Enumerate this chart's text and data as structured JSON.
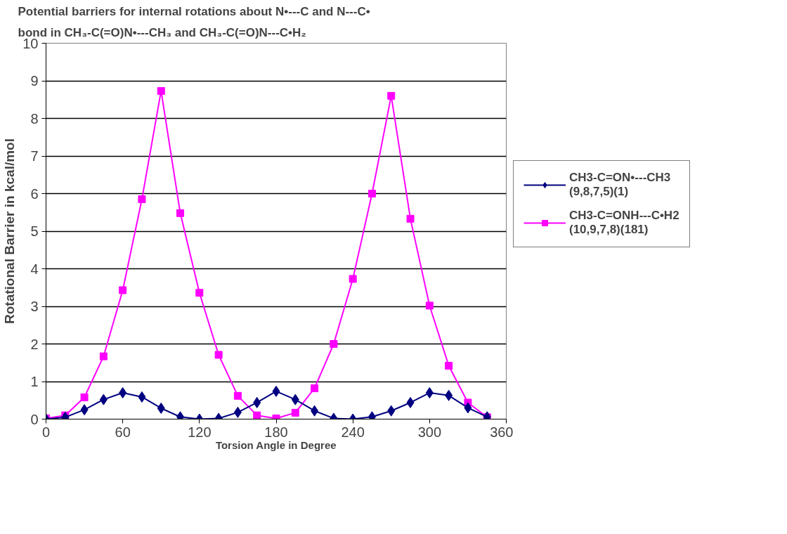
{
  "chart_data": {
    "type": "line",
    "title": "Potential barriers for internal rotations about N•---C and N---C•\nbond in CH₃-C(=O)N•---CH₃ and CH₃-C(=O)N---C•H₂",
    "xlabel": "Torsion Angle in Degree",
    "ylabel": "Rotational Barrier in kcal/mol",
    "x": [
      0,
      15,
      30,
      45,
      60,
      75,
      90,
      105,
      120,
      135,
      150,
      165,
      180,
      195,
      210,
      225,
      240,
      255,
      270,
      285,
      300,
      315,
      330,
      345
    ],
    "series": [
      {
        "name": "CH3-C=ON•---CH3\n(9,8,7,5)(1)",
        "color": "#000080",
        "marker": "diamond",
        "values": [
          0,
          0.05,
          0.25,
          0.52,
          0.7,
          0.59,
          0.29,
          0.06,
          0,
          0.02,
          0.18,
          0.44,
          0.74,
          0.52,
          0.22,
          0.02,
          0,
          0.06,
          0.22,
          0.44,
          0.7,
          0.63,
          0.3,
          0.06
        ]
      },
      {
        "name": "CH3-C=ONH---C•H2\n(10,9,7,8)(181)",
        "color": "#ff00ff",
        "marker": "square",
        "values": [
          0.02,
          0.1,
          0.58,
          1.67,
          3.43,
          5.85,
          8.73,
          5.48,
          3.36,
          1.71,
          0.62,
          0.1,
          0.02,
          0.17,
          0.82,
          2.0,
          3.73,
          6.0,
          8.6,
          5.33,
          3.02,
          1.42,
          0.44,
          0.05
        ]
      }
    ],
    "xlim": [
      0,
      360
    ],
    "xticks": [
      0,
      60,
      120,
      180,
      240,
      300,
      360
    ],
    "ylim": [
      0,
      10
    ],
    "yticks": [
      0,
      1,
      2,
      3,
      4,
      5,
      6,
      7,
      8,
      9,
      10
    ],
    "grid": "y",
    "legend": "right",
    "line_style": "solid"
  }
}
